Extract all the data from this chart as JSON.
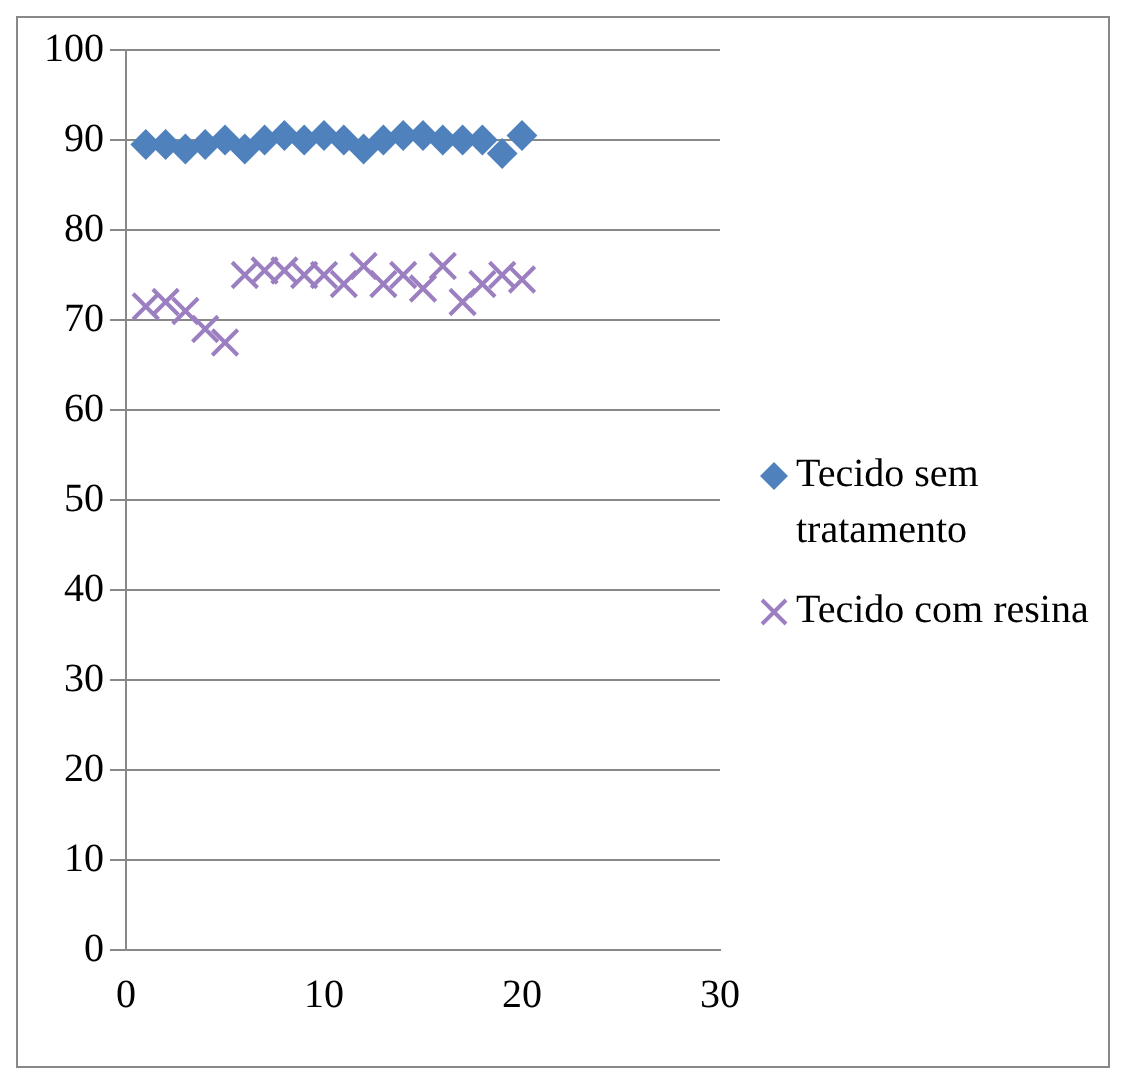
{
  "chart_data": {
    "type": "scatter",
    "x": [
      1,
      2,
      3,
      4,
      5,
      6,
      7,
      8,
      9,
      10,
      11,
      12,
      13,
      14,
      15,
      16,
      17,
      18,
      19,
      20
    ],
    "series": [
      {
        "name": "Tecido sem tratamento",
        "color": "#4f81bd",
        "marker": "diamond",
        "values": [
          89.5,
          89.5,
          89,
          89.5,
          90,
          89,
          90,
          90.5,
          90,
          90.5,
          90,
          89,
          90,
          90.5,
          90.5,
          90,
          90,
          90,
          88.5,
          90.5
        ]
      },
      {
        "name": "Tecido com resina",
        "color": "#9b7fc0",
        "marker": "cross",
        "values": [
          71.5,
          72,
          71,
          69,
          67.5,
          75,
          75.5,
          75.5,
          75,
          75,
          74,
          76,
          74,
          75,
          73.5,
          76,
          72,
          74,
          75,
          74.5
        ]
      }
    ],
    "xlim": [
      0,
      30
    ],
    "xticks": [
      0,
      10,
      20,
      30
    ],
    "ylim": [
      0,
      100
    ],
    "yticks": [
      0,
      10,
      20,
      30,
      40,
      50,
      60,
      70,
      80,
      90,
      100
    ],
    "grid": "y",
    "legend": "right"
  }
}
